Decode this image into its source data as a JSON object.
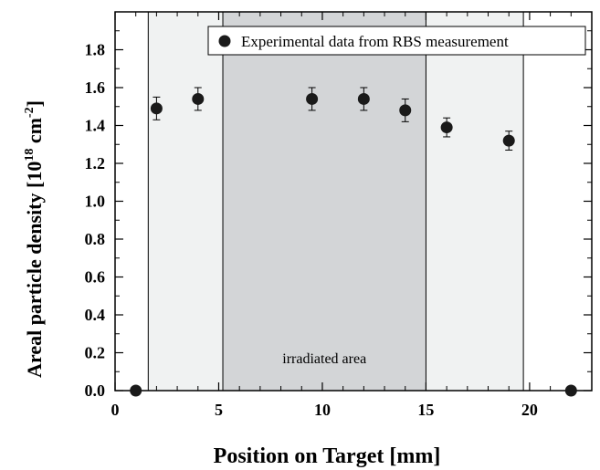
{
  "chart_data": {
    "type": "scatter",
    "xlabel": "Position on Target [mm]",
    "ylabel": "Areal particle density [10",
    "ylabel_exp1": "18",
    "ylabel_mid": " cm",
    "ylabel_exp2": "-2",
    "ylabel_end": "]",
    "xlim": [
      0,
      23
    ],
    "ylim": [
      0,
      2.0
    ],
    "x_ticks": [
      0,
      5,
      10,
      15,
      20
    ],
    "y_ticks": [
      0.0,
      0.2,
      0.4,
      0.6,
      0.8,
      1.0,
      1.2,
      1.4,
      1.6,
      1.8
    ],
    "x_tick_labels": [
      "0",
      "5",
      "10",
      "15",
      "20"
    ],
    "y_tick_labels": [
      "0.0",
      "0.2",
      "0.4",
      "0.6",
      "0.8",
      "1.0",
      "1.2",
      "1.4",
      "1.6",
      "1.8"
    ],
    "legend": {
      "label": "Experimental data from RBS measurement",
      "position": "top-right"
    },
    "regions": [
      {
        "x0": 1.6,
        "x1": 19.7,
        "fill": "#f0f2f2"
      },
      {
        "x0": 5.2,
        "x1": 15.0,
        "fill": "#d3d5d7",
        "label": "irradiated area"
      }
    ],
    "series": [
      {
        "marker": "filled-circle",
        "color": "#1a1a1a",
        "points": [
          {
            "x": 1.0,
            "y": 0.0,
            "err": 0
          },
          {
            "x": 2.0,
            "y": 1.49,
            "err": 0.06
          },
          {
            "x": 4.0,
            "y": 1.54,
            "err": 0.06
          },
          {
            "x": 9.5,
            "y": 1.54,
            "err": 0.06
          },
          {
            "x": 12.0,
            "y": 1.54,
            "err": 0.06
          },
          {
            "x": 14.0,
            "y": 1.48,
            "err": 0.06
          },
          {
            "x": 16.0,
            "y": 1.39,
            "err": 0.05
          },
          {
            "x": 19.0,
            "y": 1.32,
            "err": 0.05
          },
          {
            "x": 22.0,
            "y": 0.0,
            "err": 0
          }
        ]
      }
    ]
  }
}
